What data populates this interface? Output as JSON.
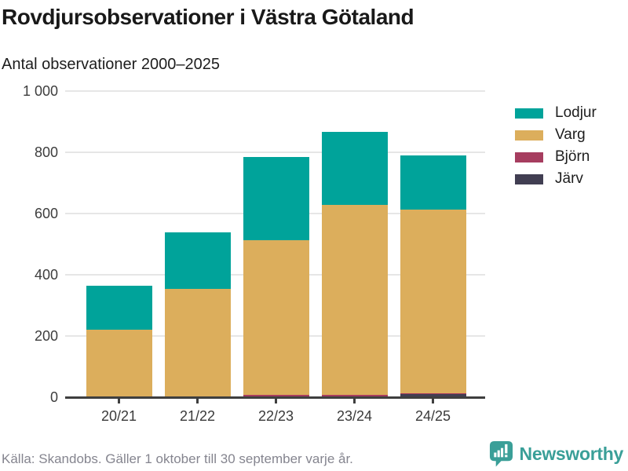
{
  "header": {
    "title": "Rovdjursobservationer i Västra Götaland",
    "subtitle": "Antal observationer 2000–2025"
  },
  "footer": {
    "source": "Källa: Skandobs. Gäller 1 oktober till 30 september varje år."
  },
  "branding": {
    "name": "Newsworthy",
    "color": "#3a9f98"
  },
  "chart_data": {
    "type": "bar",
    "stacked": true,
    "title": "Rovdjursobservationer i Västra Götaland",
    "subtitle": "Antal observationer 2000–2025",
    "categories": [
      "20/21",
      "21/22",
      "22/23",
      "23/24",
      "24/25"
    ],
    "series": [
      {
        "name": "Lodjur",
        "color": "#00a39a",
        "values": [
          143,
          185,
          270,
          238,
          176
        ]
      },
      {
        "name": "Varg",
        "color": "#dcae5c",
        "values": [
          218,
          352,
          505,
          622,
          600
        ]
      },
      {
        "name": "Björn",
        "color": "#a63d5f",
        "values": [
          0,
          0,
          6,
          4,
          3
        ]
      },
      {
        "name": "Järv",
        "color": "#413e52",
        "values": [
          0,
          0,
          0,
          0,
          8
        ]
      }
    ],
    "stack_order_bottom_to_top": [
      "Järv",
      "Björn",
      "Varg",
      "Lodjur"
    ],
    "totals": [
      361,
      537,
      781,
      864,
      787
    ],
    "xlabel": "",
    "ylabel": "Antal observationer",
    "ylim": [
      0,
      1000
    ],
    "yticks": [
      0,
      200,
      400,
      600,
      800,
      1000
    ],
    "ytick_labels": [
      "0",
      "200",
      "400",
      "600",
      "800",
      "1 000"
    ],
    "grid": true,
    "legend_position": "right"
  }
}
